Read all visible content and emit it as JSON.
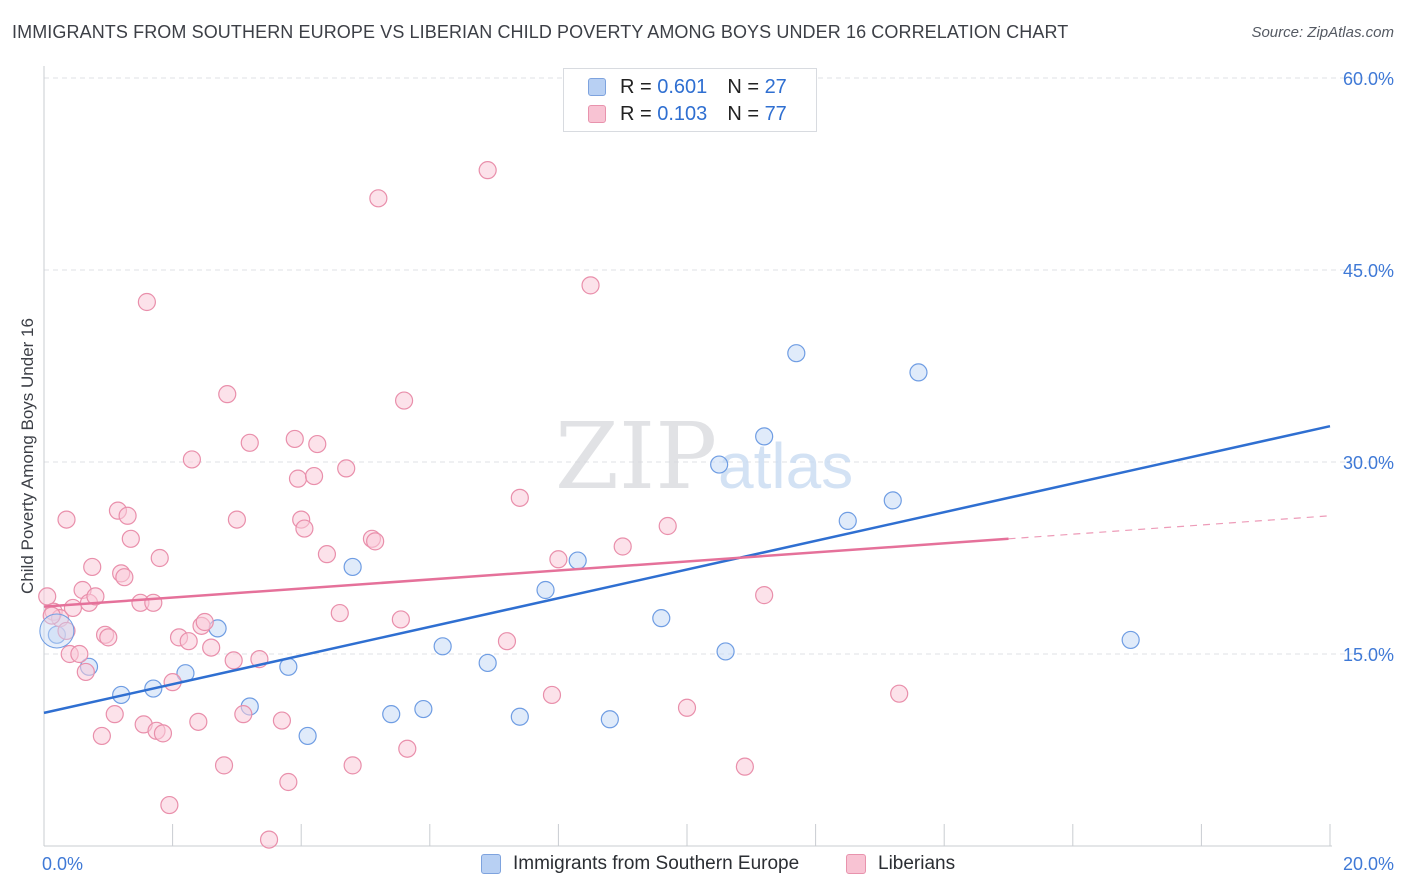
{
  "header": {
    "title": "IMMIGRANTS FROM SOUTHERN EUROPE VS LIBERIAN CHILD POVERTY AMONG BOYS UNDER 16 CORRELATION CHART",
    "source": "Source: ZipAtlas.com"
  },
  "watermark": {
    "zip": "ZIP",
    "atlas": "atlas"
  },
  "legend": {
    "blue": {
      "r_label": "R =",
      "r_value": "0.601",
      "n_label": "N =",
      "n_value": "27"
    },
    "pink": {
      "r_label": "R =",
      "r_value": "0.103",
      "n_label": "N =",
      "n_value": "77"
    }
  },
  "bottom_legend": {
    "blue_label": "Immigrants from Southern Europe",
    "pink_label": "Liberians"
  },
  "chart_data": {
    "type": "scatter",
    "ylabel": "Child Poverty Among Boys Under 16",
    "xlim": [
      0,
      20
    ],
    "ylim": [
      0,
      60
    ],
    "x_ticks": [
      {
        "value": 0,
        "label": "0.0%"
      },
      {
        "value": 20,
        "label": "20.0%"
      }
    ],
    "y_ticks": [
      {
        "value": 15,
        "label": "15.0%"
      },
      {
        "value": 30,
        "label": "30.0%"
      },
      {
        "value": 45,
        "label": "45.0%"
      },
      {
        "value": 60,
        "label": "60.0%"
      }
    ],
    "grid": "dashed horizontal",
    "colors": {
      "blue": "#6f9de3",
      "blue_fill": "#c7daf5",
      "blue_line": "#2f6fd1",
      "pink": "#e98fab",
      "pink_fill": "#f9cbd9",
      "pink_line": "#e5719a"
    },
    "series": [
      {
        "name": "Immigrants from Southern Europe",
        "color": "blue",
        "points": [
          [
            0.2,
            16.5
          ],
          [
            0.7,
            14.0
          ],
          [
            1.2,
            11.8
          ],
          [
            1.7,
            12.3
          ],
          [
            2.2,
            13.5
          ],
          [
            2.7,
            17.0
          ],
          [
            3.2,
            10.9
          ],
          [
            3.8,
            14.0
          ],
          [
            4.1,
            8.6
          ],
          [
            4.8,
            21.8
          ],
          [
            5.4,
            10.3
          ],
          [
            5.9,
            10.7
          ],
          [
            6.2,
            15.6
          ],
          [
            6.9,
            14.3
          ],
          [
            7.4,
            10.1
          ],
          [
            7.8,
            20.0
          ],
          [
            8.3,
            22.3
          ],
          [
            8.8,
            9.9
          ],
          [
            9.6,
            17.8
          ],
          [
            10.5,
            29.8
          ],
          [
            10.6,
            15.2
          ],
          [
            11.2,
            32.0
          ],
          [
            11.7,
            38.5
          ],
          [
            12.5,
            25.4
          ],
          [
            13.2,
            27.0
          ],
          [
            13.6,
            37.0
          ],
          [
            16.9,
            16.1
          ]
        ]
      },
      {
        "name": "Liberians",
        "color": "pink",
        "points": [
          [
            0.05,
            19.5
          ],
          [
            0.15,
            18.3
          ],
          [
            0.25,
            17.8
          ],
          [
            0.35,
            16.8
          ],
          [
            0.35,
            25.5
          ],
          [
            0.4,
            15.0
          ],
          [
            0.45,
            18.6
          ],
          [
            0.55,
            15.0
          ],
          [
            0.6,
            20.0
          ],
          [
            0.65,
            13.6
          ],
          [
            0.7,
            19.0
          ],
          [
            0.75,
            21.8
          ],
          [
            0.8,
            19.5
          ],
          [
            0.9,
            8.6
          ],
          [
            0.95,
            16.5
          ],
          [
            1.0,
            16.3
          ],
          [
            1.1,
            10.3
          ],
          [
            1.15,
            26.2
          ],
          [
            1.2,
            21.3
          ],
          [
            1.25,
            21.0
          ],
          [
            1.3,
            25.8
          ],
          [
            1.35,
            24.0
          ],
          [
            1.5,
            19.0
          ],
          [
            1.55,
            9.5
          ],
          [
            1.6,
            42.5
          ],
          [
            1.7,
            19.0
          ],
          [
            1.75,
            9.0
          ],
          [
            1.8,
            22.5
          ],
          [
            1.85,
            8.8
          ],
          [
            1.95,
            3.2
          ],
          [
            2.0,
            12.8
          ],
          [
            2.1,
            16.3
          ],
          [
            2.25,
            16.0
          ],
          [
            2.3,
            30.2
          ],
          [
            2.4,
            9.7
          ],
          [
            2.45,
            17.2
          ],
          [
            2.5,
            17.5
          ],
          [
            2.6,
            15.5
          ],
          [
            2.8,
            6.3
          ],
          [
            2.85,
            35.3
          ],
          [
            2.95,
            14.5
          ],
          [
            3.0,
            25.5
          ],
          [
            3.1,
            10.3
          ],
          [
            3.2,
            31.5
          ],
          [
            3.35,
            14.6
          ],
          [
            3.5,
            0.5
          ],
          [
            3.7,
            9.8
          ],
          [
            3.8,
            5.0
          ],
          [
            3.9,
            31.8
          ],
          [
            3.95,
            28.7
          ],
          [
            4.0,
            25.5
          ],
          [
            4.05,
            24.8
          ],
          [
            4.2,
            28.9
          ],
          [
            4.25,
            31.4
          ],
          [
            4.4,
            22.8
          ],
          [
            4.6,
            18.2
          ],
          [
            4.7,
            29.5
          ],
          [
            4.8,
            6.3
          ],
          [
            5.1,
            24.0
          ],
          [
            5.15,
            23.8
          ],
          [
            5.2,
            50.6
          ],
          [
            5.55,
            17.7
          ],
          [
            5.6,
            34.8
          ],
          [
            5.65,
            7.6
          ],
          [
            6.9,
            52.8
          ],
          [
            7.2,
            16.0
          ],
          [
            7.4,
            27.2
          ],
          [
            7.9,
            11.8
          ],
          [
            8.0,
            22.4
          ],
          [
            8.5,
            43.8
          ],
          [
            9.0,
            23.4
          ],
          [
            9.7,
            25.0
          ],
          [
            10.0,
            10.8
          ],
          [
            10.9,
            6.2
          ],
          [
            11.2,
            19.6
          ],
          [
            13.3,
            11.9
          ],
          [
            0.12,
            18.0
          ]
        ]
      }
    ],
    "trend_lines": [
      {
        "series": "Immigrants from Southern Europe",
        "x": [
          0,
          20
        ],
        "y": [
          10.4,
          32.8
        ]
      },
      {
        "series": "Liberians",
        "x": [
          0,
          15
        ],
        "y": [
          18.7,
          24.0
        ],
        "dashed_extension": {
          "x": [
            15,
            20
          ],
          "y": [
            24.0,
            25.8
          ]
        }
      }
    ],
    "large_points": [
      {
        "series": "Immigrants from Southern Europe",
        "x": 0.2,
        "y": 16.8
      }
    ]
  }
}
